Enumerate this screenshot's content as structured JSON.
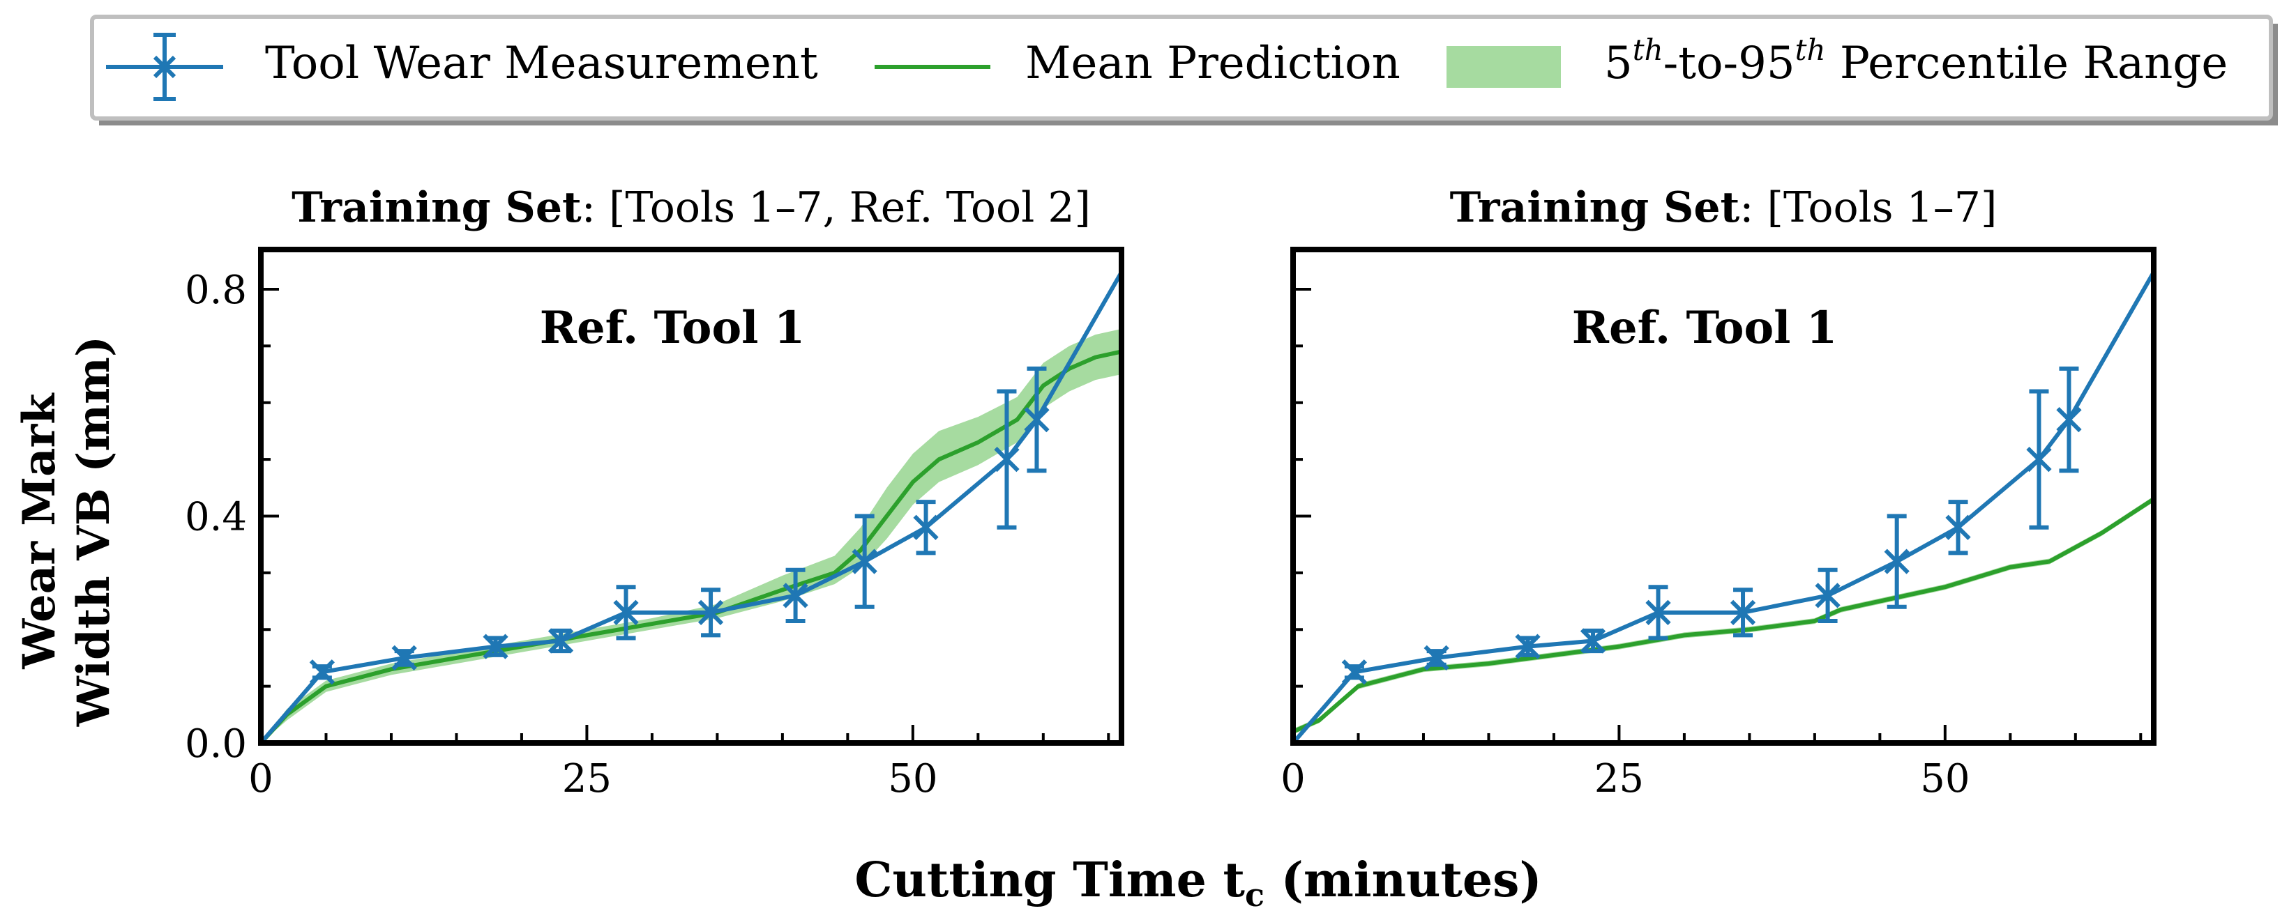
{
  "colors": {
    "measurement": "#1f77b4",
    "prediction": "#2ca02c",
    "band": "#a6dba0",
    "axis": "#000000"
  },
  "legend": {
    "measurement_label": "Tool Wear Measurement",
    "prediction_label": "Mean Prediction",
    "band_label_prefix": "5",
    "band_sup1": "th",
    "band_mid": "-to-95",
    "band_sup2": "th",
    "band_suffix": " Percentile Range"
  },
  "y_axis_label_line1": "Wear Mark",
  "y_axis_label_line2": "Width VB (mm)",
  "x_axis_label_prefix": "Cutting Time t",
  "x_axis_label_sub": "c",
  "x_axis_label_suffix": " (minutes)",
  "chart_data": [
    {
      "type": "line",
      "title_bold": "Training Set",
      "title_rest": ": [Tools 1–7, Ref. Tool 2]",
      "annotation": "Ref.  Tool 1",
      "xlim": [
        0,
        66
      ],
      "ylim": [
        0,
        0.87
      ],
      "x_ticks": [
        0,
        25,
        50
      ],
      "x_tick_labels": [
        "0",
        "25",
        "50"
      ],
      "y_ticks": [
        0.0,
        0.4,
        0.8
      ],
      "y_tick_labels": [
        "0.0",
        "0.4",
        "0.8"
      ],
      "measurement": {
        "x": [
          0,
          4.7,
          11,
          18,
          23,
          28,
          34.5,
          41,
          46.3,
          51,
          57.2,
          59.5,
          66
        ],
        "y": [
          0.0,
          0.125,
          0.15,
          0.17,
          0.18,
          0.23,
          0.23,
          0.26,
          0.32,
          0.38,
          0.5,
          0.57,
          0.83
        ],
        "err": [
          0,
          0.01,
          0.012,
          0.015,
          0.018,
          0.045,
          0.04,
          0.045,
          0.08,
          0.045,
          0.12,
          0.09,
          0
        ]
      },
      "prediction": {
        "x": [
          0,
          2,
          5,
          10,
          15,
          20,
          25,
          30,
          35,
          40,
          44,
          46,
          48,
          50,
          52,
          55,
          58,
          60,
          62,
          64,
          66
        ],
        "y": [
          0.0,
          0.05,
          0.1,
          0.13,
          0.15,
          0.17,
          0.19,
          0.21,
          0.23,
          0.27,
          0.3,
          0.34,
          0.4,
          0.46,
          0.5,
          0.53,
          0.57,
          0.63,
          0.66,
          0.68,
          0.69
        ]
      },
      "band": {
        "x": [
          0,
          2,
          5,
          10,
          15,
          20,
          25,
          30,
          35,
          40,
          44,
          46,
          48,
          50,
          52,
          55,
          58,
          60,
          62,
          64,
          66
        ],
        "lower": [
          0.0,
          0.04,
          0.09,
          0.12,
          0.14,
          0.16,
          0.18,
          0.2,
          0.22,
          0.25,
          0.28,
          0.31,
          0.36,
          0.42,
          0.46,
          0.49,
          0.53,
          0.59,
          0.62,
          0.64,
          0.65
        ],
        "upper": [
          0.0,
          0.06,
          0.11,
          0.14,
          0.16,
          0.18,
          0.2,
          0.22,
          0.245,
          0.295,
          0.33,
          0.38,
          0.45,
          0.51,
          0.55,
          0.575,
          0.61,
          0.67,
          0.7,
          0.72,
          0.73
        ]
      }
    },
    {
      "type": "line",
      "title_bold": "Training Set",
      "title_rest": ": [Tools 1–7]",
      "annotation": "Ref.  Tool 1",
      "xlim": [
        0,
        66
      ],
      "ylim": [
        0,
        0.87
      ],
      "x_ticks": [
        0,
        25,
        50
      ],
      "x_tick_labels": [
        "0",
        "25",
        "50"
      ],
      "y_ticks": [
        0.0,
        0.4,
        0.8
      ],
      "y_tick_labels": [
        "",
        "",
        ""
      ],
      "measurement": {
        "x": [
          0,
          4.7,
          11,
          18,
          23,
          28,
          34.5,
          41,
          46.3,
          51,
          57.2,
          59.5,
          66
        ],
        "y": [
          0.0,
          0.125,
          0.15,
          0.17,
          0.18,
          0.23,
          0.23,
          0.26,
          0.32,
          0.38,
          0.5,
          0.57,
          0.83
        ],
        "err": [
          0,
          0.01,
          0.012,
          0.015,
          0.018,
          0.045,
          0.04,
          0.045,
          0.08,
          0.045,
          0.12,
          0.09,
          0
        ]
      },
      "prediction": {
        "x": [
          0,
          2,
          5,
          10,
          15,
          20,
          25,
          30,
          35,
          40,
          42,
          45,
          50,
          55,
          58,
          60,
          62,
          64,
          66
        ],
        "y": [
          0.02,
          0.04,
          0.1,
          0.13,
          0.14,
          0.155,
          0.17,
          0.19,
          0.2,
          0.215,
          0.235,
          0.25,
          0.275,
          0.31,
          0.32,
          0.345,
          0.37,
          0.4,
          0.43
        ]
      },
      "band": {
        "x": [
          0,
          2,
          5,
          10,
          15,
          20,
          25,
          30,
          35,
          40,
          42,
          45,
          50,
          55,
          58,
          60,
          62,
          64,
          66
        ],
        "lower": [
          0.015,
          0.035,
          0.095,
          0.125,
          0.135,
          0.15,
          0.165,
          0.185,
          0.195,
          0.21,
          0.23,
          0.245,
          0.27,
          0.305,
          0.315,
          0.34,
          0.365,
          0.395,
          0.425
        ],
        "upper": [
          0.025,
          0.045,
          0.105,
          0.135,
          0.145,
          0.16,
          0.175,
          0.195,
          0.205,
          0.22,
          0.24,
          0.255,
          0.28,
          0.315,
          0.325,
          0.35,
          0.375,
          0.405,
          0.435
        ]
      }
    }
  ]
}
